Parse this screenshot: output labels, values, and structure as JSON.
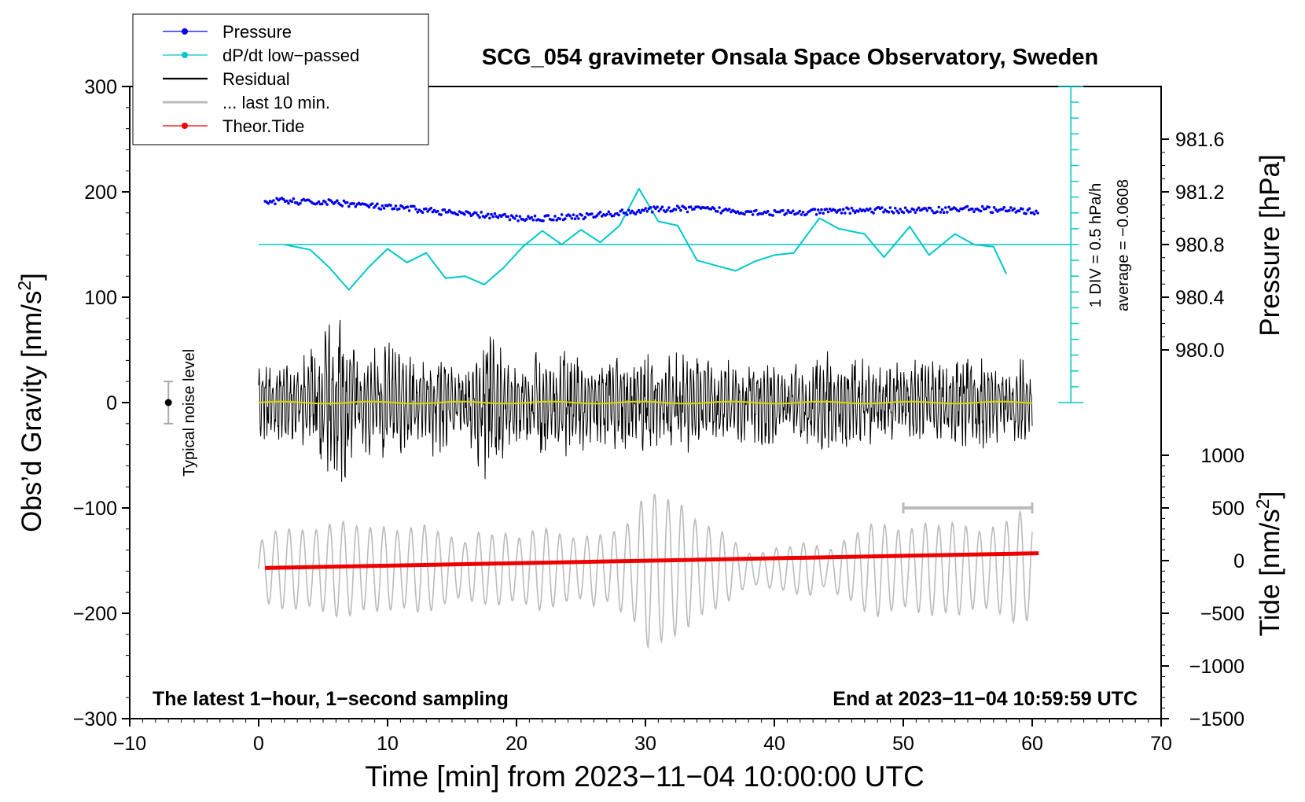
{
  "chart_data": {
    "type": "line",
    "title": "SCG_054 gravimeter Onsala Space Observatory, Sweden",
    "xlabel": "Time [min] from 2023−11−04 10:00:00 UTC",
    "ylabel": "Obs’d Gravity [nm/s",
    "ylabel_sup": "2",
    "ylabel_end": "]",
    "y2label": "Pressure [hPa]",
    "y3label": "Tide [nm/s",
    "y3label_sup": "2",
    "y3label_end": "]",
    "xlim": [
      -10,
      70
    ],
    "ylim": [
      -300,
      300
    ],
    "x_ticks": [
      {
        "v": -10,
        "label": "−10"
      },
      {
        "v": 0,
        "label": "0"
      },
      {
        "v": 10,
        "label": "10"
      },
      {
        "v": 20,
        "label": "20"
      },
      {
        "v": 30,
        "label": "30"
      },
      {
        "v": 40,
        "label": "40"
      },
      {
        "v": 50,
        "label": "50"
      },
      {
        "v": 60,
        "label": "60"
      },
      {
        "v": 70,
        "label": "70"
      }
    ],
    "y_ticks": [
      {
        "v": 300,
        "label": "300"
      },
      {
        "v": 200,
        "label": "200"
      },
      {
        "v": 100,
        "label": "100"
      },
      {
        "v": 0,
        "label": "0"
      },
      {
        "v": -100,
        "label": "−100"
      },
      {
        "v": -200,
        "label": "−200"
      },
      {
        "v": -300,
        "label": "−300"
      }
    ],
    "pressure_axis": {
      "map_value": 980.8,
      "map_gravity": 150,
      "gravity_per_hpa": 125,
      "ticks": [
        {
          "v": 981.6,
          "label": "981.6"
        },
        {
          "v": 981.2,
          "label": "981.2"
        },
        {
          "v": 980.8,
          "label": "980.8"
        },
        {
          "v": 980.4,
          "label": "980.4"
        },
        {
          "v": 980.0,
          "label": "980.0"
        }
      ]
    },
    "tide_axis": {
      "map_value": 0,
      "map_gravity": -150,
      "gravity_per_unit": 0.1,
      "ticks": [
        {
          "v": 1000,
          "label": "1000"
        },
        {
          "v": 500,
          "label": "500"
        },
        {
          "v": 0,
          "label": "0"
        },
        {
          "v": -500,
          "label": "−500"
        },
        {
          "v": -1000,
          "label": "−1000"
        },
        {
          "v": -1500,
          "label": "−1500"
        }
      ]
    },
    "legend": {
      "location": "top-left",
      "entries": [
        {
          "label": "Pressure",
          "color": "#0000ee",
          "marker": true
        },
        {
          "label": "dP/dt low−passed",
          "color": "#00c8c8",
          "marker": true
        },
        {
          "label": "Residual",
          "color": "#000000",
          "marker": false
        },
        {
          "label": "... last 10 min.",
          "color": "#bbbbbb",
          "marker": false
        },
        {
          "label": "Theor.Tide",
          "color": "#ee0000",
          "marker": true
        }
      ]
    },
    "annotations": {
      "bottom_left": "The latest 1−hour, 1−second sampling",
      "bottom_right": "End at 2023−11−04 10:59:59 UTC",
      "noise_label": "Typical noise level",
      "dpdt_scale": "1 DIV = 0.5 hPa/h",
      "dpdt_average": "average = −0.0608"
    },
    "noise_level": {
      "x": -7,
      "center": 0,
      "half_range": 20
    },
    "dpdt_scale_bar": {
      "x": 63,
      "top": 300,
      "bottom": 0,
      "divisions": 20
    },
    "last10_bar": {
      "x0": 50,
      "x1": 60,
      "y": -100
    },
    "series": [
      {
        "name": "Pressure",
        "color": "#0000ee",
        "unit": "hPa",
        "x": [
          0.5,
          2,
          4,
          6,
          8,
          10,
          12,
          14,
          16,
          18,
          20,
          22,
          24,
          26,
          28,
          30,
          32,
          34,
          36,
          38,
          40,
          42,
          44,
          46,
          48,
          50,
          52,
          54,
          56,
          58,
          60.5
        ],
        "y": [
          981.13,
          981.13,
          981.12,
          981.12,
          981.1,
          981.08,
          981.07,
          981.05,
          981.03,
          981.02,
          981.0,
          981.0,
          981.01,
          981.02,
          981.04,
          981.06,
          981.07,
          981.07,
          981.06,
          981.05,
          981.04,
          981.04,
          981.05,
          981.06,
          981.06,
          981.06,
          981.06,
          981.07,
          981.07,
          981.06,
          981.05
        ]
      },
      {
        "name": "dP/dt low−passed",
        "color": "#00c8c8",
        "unit": "nm/s2 equiv.",
        "x": [
          2,
          4,
          5.5,
          7,
          8.5,
          10,
          11.5,
          13,
          14.5,
          16,
          17.5,
          19,
          20.5,
          22,
          23.5,
          25,
          26.5,
          28,
          29.5,
          31,
          32.5,
          34,
          35.5,
          37,
          38.5,
          40,
          41.5,
          43.5,
          45,
          47,
          48.5,
          50.5,
          52,
          54,
          55.5,
          57,
          58
        ],
        "y": [
          150,
          145,
          128,
          107,
          128,
          146,
          133,
          142,
          118,
          120,
          112,
          128,
          148,
          163,
          150,
          164,
          152,
          168,
          203,
          172,
          168,
          135,
          130,
          125,
          134,
          140,
          142,
          175,
          165,
          160,
          138,
          167,
          140,
          160,
          150,
          148,
          122
        ]
      },
      {
        "name": "Residual",
        "color": "#000000",
        "unit": "nm/s2",
        "x": [
          0,
          1,
          2,
          3,
          4,
          5,
          6,
          7,
          8,
          9,
          10,
          11,
          12,
          13,
          14,
          15,
          16,
          17,
          18,
          19,
          20,
          21,
          22,
          23,
          24,
          25,
          26,
          27,
          28,
          29,
          30,
          31,
          32,
          33,
          34,
          35,
          36,
          37,
          38,
          39,
          40,
          41,
          42,
          43,
          44,
          45,
          46,
          47,
          48,
          49,
          50,
          51,
          52,
          53,
          54,
          55,
          56,
          57,
          58,
          59,
          60
        ],
        "y": [
          40,
          38,
          40,
          35,
          55,
          80,
          90,
          72,
          45,
          55,
          60,
          50,
          45,
          50,
          55,
          40,
          38,
          60,
          100,
          55,
          40,
          45,
          55,
          45,
          60,
          48,
          45,
          50,
          55,
          45,
          55,
          45,
          50,
          48,
          55,
          45,
          40,
          42,
          40,
          45,
          48,
          40,
          45,
          42,
          55,
          45,
          50,
          45,
          38,
          42,
          40,
          45,
          42,
          45,
          40,
          45,
          48,
          40,
          38,
          42,
          40
        ]
      },
      {
        "name": "... last 10 min.",
        "color": "#bbbbbb",
        "unit": "nm/s2",
        "x": [
          0,
          1,
          2,
          3,
          4,
          5,
          6,
          7,
          8,
          9,
          10,
          11,
          12,
          13,
          14,
          15,
          16,
          17,
          18,
          19,
          20,
          21,
          22,
          23,
          24,
          25,
          26,
          27,
          28,
          29,
          30,
          31,
          32,
          33,
          34,
          35,
          36,
          37,
          38,
          39,
          40,
          41,
          42,
          43,
          44,
          45,
          46,
          47,
          48,
          49,
          50,
          51,
          52,
          53,
          54,
          55,
          56,
          57,
          58,
          59,
          60
        ],
        "y": [
          25,
          35,
          38,
          38,
          35,
          40,
          45,
          45,
          38,
          40,
          40,
          35,
          40,
          42,
          35,
          30,
          25,
          35,
          32,
          35,
          28,
          35,
          40,
          35,
          30,
          28,
          35,
          30,
          40,
          45,
          75,
          70,
          65,
          60,
          45,
          40,
          35,
          25,
          15,
          15,
          20,
          20,
          25,
          25,
          15,
          25,
          30,
          40,
          45,
          40,
          35,
          40,
          45,
          40,
          45,
          40,
          35,
          40,
          45,
          55,
          45
        ]
      },
      {
        "name": "Theor.Tide",
        "color": "#ee0000",
        "unit": "nm/s2",
        "x": [
          0.5,
          60.5
        ],
        "y": [
          -70,
          70
        ]
      }
    ]
  }
}
